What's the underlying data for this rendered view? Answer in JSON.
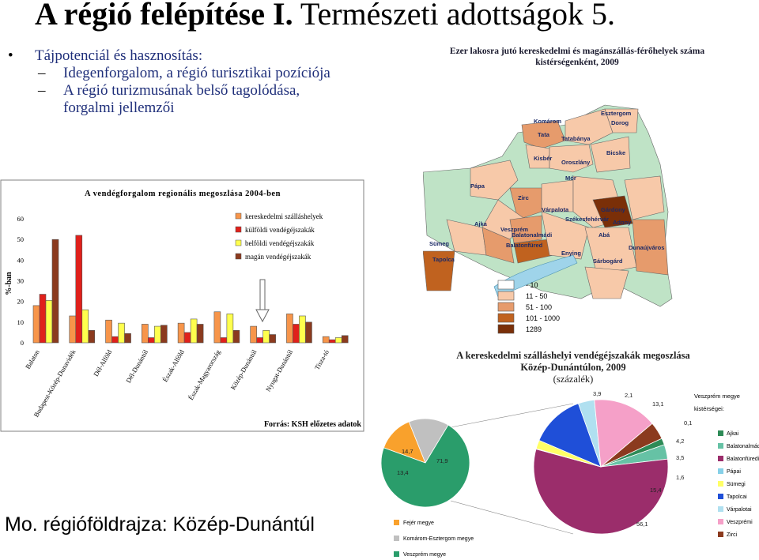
{
  "slide": {
    "title_bold": "A régió felépítése I.",
    "title_rest": " Természeti adottságok 5.",
    "bullet": "Tájpotenciál és hasznosítás:",
    "sub1": "Idegenforgalom, a régió turisztikai pozíciója",
    "sub2a": "A régió turizmusának belső tagolódása,",
    "sub2b": "forgalmi jellemzői",
    "footer": "Mo. régióföldrajza: Közép-Dunántúl"
  },
  "map": {
    "title1": "Ezer lakosra jutó kereskedelmi és magánszállás-férőhelyek száma",
    "title2": "kistérségenként, 2009",
    "labels": [
      "Komárom",
      "Esztergom",
      "Dorog",
      "Tata",
      "Tatabánya",
      "Kisbér",
      "Oroszlány",
      "Bicske",
      "Mór",
      "Pápa",
      "Zirc",
      "Várpalota",
      "Székesfehérvár",
      "Gárdony",
      "Ajka",
      "Veszprém",
      "Balatonalmádi",
      "Adony",
      "Sümeg",
      "Balatonfüred",
      "Enying",
      "Abá",
      "Dunaújváros",
      "Tapolca",
      "Sárbogárd"
    ],
    "legend": [
      {
        "label": "-  10",
        "color": "#ffffff"
      },
      {
        "label": "11 -  50",
        "color": "#f7c9a9"
      },
      {
        "label": "51 - 100",
        "color": "#e69b6c"
      },
      {
        "label": "101 - 1000",
        "color": "#c0621f"
      },
      {
        "label": "1289",
        "color": "#7a2f08"
      }
    ],
    "colors": {
      "lake": "#9fd4ea",
      "v1": "#f7c9a9",
      "v2": "#e69b6c",
      "v3": "#c0621f",
      "v4": "#7a2f08",
      "outer": "#bfe3c6",
      "road": "#5a8f5a"
    }
  },
  "chart_data": [
    {
      "type": "bar",
      "title": "A vendégforgalom regionális megoszlása 2004-ben",
      "ylabel": "%-ban",
      "xlabel": "",
      "ylim": [
        0,
        60
      ],
      "yticks": [
        "0",
        "10",
        "20",
        "30",
        "40",
        "50",
        "60"
      ],
      "categories": [
        "Balaton",
        "Budapest-Közép-Dunavidék",
        "Dél-Alföld",
        "Dél-Dunántúl",
        "Észak-Alföld",
        "Észak-Magyarország",
        "Közép-Dunántúl",
        "Nyugat-Dunántúl",
        "Tisza-tó"
      ],
      "series": [
        {
          "name": "kereskedelmi szálláshelyek",
          "color": "#f7954a",
          "values": [
            18,
            13,
            11,
            9,
            9.5,
            15,
            8,
            14,
            3
          ]
        },
        {
          "name": "külföldi vendégéjszakák",
          "color": "#e0201b",
          "values": [
            23.5,
            52,
            3,
            2.5,
            5,
            2.5,
            2.5,
            9,
            1.5
          ]
        },
        {
          "name": "belföldi vendégéjszakák",
          "color": "#ffff4d",
          "values": [
            20.5,
            16,
            9.5,
            8,
            11.5,
            14,
            6,
            13,
            2.5
          ]
        },
        {
          "name": "magán vendégéjszakák",
          "color": "#8b3a1e",
          "values": [
            50,
            6,
            4.5,
            8.5,
            9,
            6,
            4,
            10,
            3.5
          ]
        }
      ],
      "legend_position": "top-right",
      "annotation": "Forrás: KSH előzetes adatok"
    },
    {
      "type": "pie",
      "title": "A kereskedelmi szálláshelyi vendégéjszakák megoszlása",
      "subtitle1": "Közép-Dunántúlon, 2009",
      "subtitle2": "(százalék)",
      "labels": [
        "Fejér megye",
        "Komárom-Esztergom megye",
        "Veszprém megye"
      ],
      "values": [
        13.4,
        14.7,
        71.9
      ],
      "value_labels": [
        "13,4",
        "14,7",
        "71,9"
      ],
      "colors": [
        "#f9a12c",
        "#c0c0c0",
        "#2a9d6b"
      ],
      "legend_position": "bottom-left"
    },
    {
      "type": "pie",
      "title": "Veszprém megye kistérségei:",
      "labels": [
        "Ajkai",
        "Balatonalmádi",
        "Balatonfüredi",
        "Pápai",
        "Sümegi",
        "Tapolcai",
        "Várpalotai",
        "Veszprémi",
        "Zirci"
      ],
      "values": [
        1.6,
        3.5,
        56.1,
        0.1,
        2.1,
        13.1,
        3.9,
        15.4,
        4.2
      ],
      "value_labels": [
        "1,6",
        "3,5",
        "56,1",
        "0,1",
        "2,1",
        "13,1",
        "3,9",
        "15,4",
        "4,2"
      ],
      "colors": [
        "#2e8b57",
        "#66c2a5",
        "#9b2d6b",
        "#86d0e8",
        "#ffff66",
        "#1f4fd8",
        "#b0e0f0",
        "#f5a0c8",
        "#8b3a1e"
      ],
      "legend_position": "right"
    }
  ]
}
